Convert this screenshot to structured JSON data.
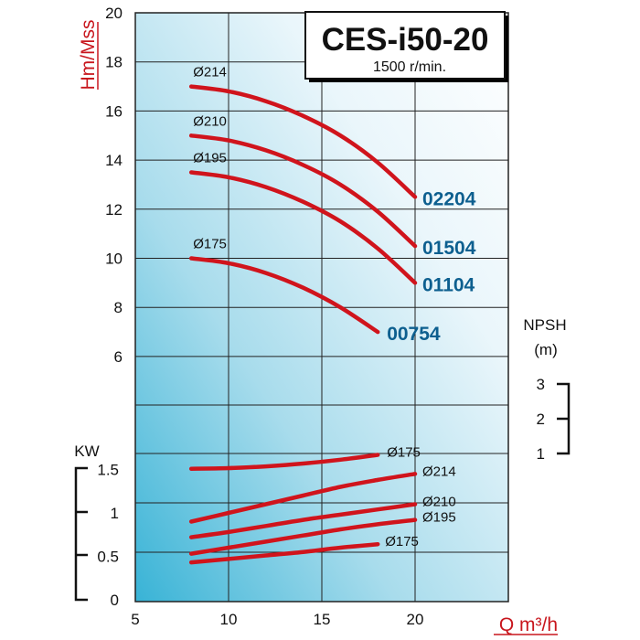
{
  "chart_data": {
    "type": "line",
    "title": "CES-i50-20",
    "subtitle": "1500 r/min.",
    "xlabel": "Q m³/h",
    "xlim": [
      5,
      25
    ],
    "x_ticks": [
      "5",
      "10",
      "15",
      "20"
    ],
    "head": {
      "ylabel": "Hm/Mss",
      "ylim": [
        4,
        20
      ],
      "y_ticks": [
        "6",
        "8",
        "10",
        "12",
        "14",
        "16",
        "18",
        "20"
      ],
      "series": [
        {
          "name": "Ø214",
          "model": "02204",
          "x": [
            8,
            10,
            12,
            14,
            16,
            18,
            20
          ],
          "y": [
            17.0,
            16.8,
            16.4,
            15.8,
            15.0,
            13.9,
            12.5
          ]
        },
        {
          "name": "Ø210",
          "model": "01504",
          "x": [
            8,
            10,
            12,
            14,
            16,
            18,
            20
          ],
          "y": [
            15.0,
            14.8,
            14.4,
            13.8,
            13.0,
            11.9,
            10.5
          ]
        },
        {
          "name": "Ø195",
          "model": "01104",
          "x": [
            8,
            10,
            12,
            14,
            16,
            18,
            20
          ],
          "y": [
            13.5,
            13.3,
            12.9,
            12.3,
            11.5,
            10.4,
            9.0
          ]
        },
        {
          "name": "Ø175",
          "model": "00754",
          "x": [
            8,
            10,
            12,
            14,
            16,
            18
          ],
          "y": [
            10.0,
            9.8,
            9.4,
            8.8,
            8.0,
            7.0
          ]
        }
      ]
    },
    "npsh": {
      "ylabel": "NPSH",
      "yunit": "(m)",
      "y_ticks": [
        "1",
        "2",
        "3"
      ],
      "series": [
        {
          "name": "Ø175",
          "x": [
            8,
            10,
            12,
            14,
            16,
            18
          ],
          "y": [
            0.56,
            0.58,
            0.63,
            0.71,
            0.82,
            0.96
          ]
        }
      ]
    },
    "power": {
      "ylabel": "KW",
      "ylim": [
        0,
        1.75
      ],
      "y_ticks": [
        "0",
        "0.5",
        "1",
        "1.5"
      ],
      "series": [
        {
          "name": "Ø214",
          "x": [
            8,
            10,
            12,
            14,
            16,
            18,
            20
          ],
          "y": [
            0.9,
            1.0,
            1.1,
            1.2,
            1.3,
            1.38,
            1.45
          ]
        },
        {
          "name": "Ø210",
          "x": [
            8,
            10,
            12,
            14,
            16,
            18,
            20
          ],
          "y": [
            0.72,
            0.78,
            0.85,
            0.92,
            0.98,
            1.04,
            1.1
          ]
        },
        {
          "name": "Ø195",
          "x": [
            8,
            10,
            12,
            14,
            16,
            18,
            20
          ],
          "y": [
            0.53,
            0.6,
            0.67,
            0.74,
            0.81,
            0.87,
            0.92
          ]
        },
        {
          "name": "Ø175",
          "x": [
            8,
            10,
            12,
            14,
            16,
            18
          ],
          "y": [
            0.43,
            0.47,
            0.51,
            0.55,
            0.6,
            0.64
          ]
        }
      ]
    },
    "colors": {
      "curve": "#d0141c",
      "model_label": "#0d5f8f",
      "axis_label": "#c8161d"
    }
  }
}
